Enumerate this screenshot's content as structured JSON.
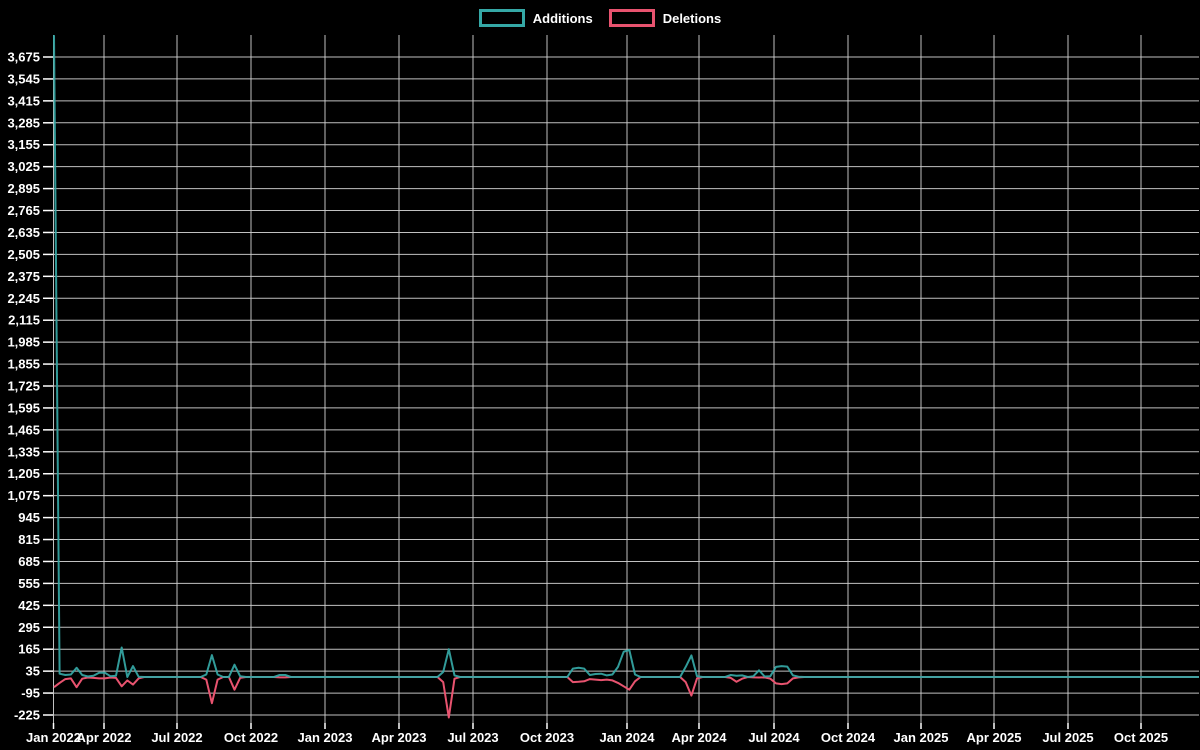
{
  "page": {
    "background": "#000000",
    "text_color": "#ffffff",
    "grid_color": "#cccccc"
  },
  "legend": {
    "items": [
      {
        "label": "Additions",
        "color": "#35a8a6"
      },
      {
        "label": "Deletions",
        "color": "#e8536f"
      }
    ]
  },
  "chart_data": {
    "type": "line",
    "title": "",
    "description": "Weekly code additions (teal) and deletions (pink) over time; huge additions spike at the first week, small activity bursts afterwards, flat near zero elsewhere.",
    "grid": "on",
    "legend_position": "top-center",
    "x_axis": {
      "tick_labels": [
        "Jan 2022",
        "Apr 2022",
        "Jul 2022",
        "Oct 2022",
        "Jan 2023",
        "Apr 2023",
        "Jul 2023",
        "Oct 2023",
        "Jan 2024",
        "Apr 2024",
        "Jul 2024",
        "Oct 2024",
        "Jan 2025",
        "Apr 2025",
        "Jul 2025",
        "Oct 2025"
      ],
      "points_per_week": 1,
      "weeks_total": 204
    },
    "y_axis": {
      "tick_labels": [
        "3,675",
        "3,545",
        "3,415",
        "3,285",
        "3,155",
        "3,025",
        "2,895",
        "2,765",
        "2,635",
        "2,505",
        "2,375",
        "2,245",
        "2,115",
        "1,985",
        "1,855",
        "1,725",
        "1,595",
        "1,465",
        "1,335",
        "1,205",
        "1,075",
        "945",
        "815",
        "685",
        "555",
        "425",
        "295",
        "165",
        "35",
        "-95",
        "-225"
      ],
      "tick_values_top_to_bottom_start": 3675,
      "tick_step": -130,
      "plot_max": 3805,
      "plot_min": -260
    },
    "series": [
      {
        "name": "Additions",
        "color": "#35a8a6",
        "default_value": 0,
        "points_nonzero": [
          [
            0,
            3805
          ],
          [
            1,
            20
          ],
          [
            2,
            12
          ],
          [
            3,
            15
          ],
          [
            4,
            55
          ],
          [
            5,
            12
          ],
          [
            6,
            3
          ],
          [
            7,
            8
          ],
          [
            8,
            26
          ],
          [
            9,
            26
          ],
          [
            10,
            5
          ],
          [
            11,
            8
          ],
          [
            12,
            175
          ],
          [
            14,
            65
          ],
          [
            15,
            2
          ],
          [
            27,
            15
          ],
          [
            28,
            130
          ],
          [
            29,
            15
          ],
          [
            32,
            73
          ],
          [
            33,
            5
          ],
          [
            40,
            12
          ],
          [
            41,
            12
          ],
          [
            69,
            30
          ],
          [
            70,
            165
          ],
          [
            71,
            10
          ],
          [
            92,
            50
          ],
          [
            93,
            55
          ],
          [
            94,
            50
          ],
          [
            95,
            12
          ],
          [
            96,
            18
          ],
          [
            97,
            20
          ],
          [
            98,
            10
          ],
          [
            99,
            15
          ],
          [
            100,
            60
          ],
          [
            101,
            150
          ],
          [
            102,
            160
          ],
          [
            103,
            15
          ],
          [
            112,
            60
          ],
          [
            113,
            128
          ],
          [
            114,
            5
          ],
          [
            120,
            12
          ],
          [
            121,
            8
          ],
          [
            122,
            10
          ],
          [
            124,
            5
          ],
          [
            125,
            40
          ],
          [
            126,
            3
          ],
          [
            127,
            5
          ],
          [
            128,
            60
          ],
          [
            129,
            65
          ],
          [
            130,
            62
          ],
          [
            131,
            10
          ],
          [
            132,
            2
          ]
        ]
      },
      {
        "name": "Deletions",
        "color": "#e8536f",
        "default_value": 0,
        "points_nonzero": [
          [
            0,
            -60
          ],
          [
            1,
            -35
          ],
          [
            2,
            -12
          ],
          [
            3,
            -8
          ],
          [
            4,
            -60
          ],
          [
            5,
            -10
          ],
          [
            6,
            -3
          ],
          [
            7,
            -5
          ],
          [
            8,
            -8
          ],
          [
            9,
            -8
          ],
          [
            10,
            -3
          ],
          [
            11,
            -5
          ],
          [
            12,
            -55
          ],
          [
            13,
            -20
          ],
          [
            14,
            -45
          ],
          [
            15,
            -8
          ],
          [
            27,
            -15
          ],
          [
            28,
            -155
          ],
          [
            29,
            -15
          ],
          [
            32,
            -75
          ],
          [
            33,
            -5
          ],
          [
            40,
            -2
          ],
          [
            41,
            -2
          ],
          [
            69,
            -30
          ],
          [
            70,
            -240
          ],
          [
            71,
            -10
          ],
          [
            92,
            -30
          ],
          [
            93,
            -28
          ],
          [
            94,
            -25
          ],
          [
            95,
            -12
          ],
          [
            96,
            -15
          ],
          [
            97,
            -18
          ],
          [
            98,
            -15
          ],
          [
            99,
            -20
          ],
          [
            100,
            -35
          ],
          [
            101,
            -55
          ],
          [
            102,
            -75
          ],
          [
            103,
            -25
          ],
          [
            112,
            -30
          ],
          [
            113,
            -110
          ],
          [
            114,
            -8
          ],
          [
            120,
            -5
          ],
          [
            121,
            -28
          ],
          [
            122,
            -10
          ],
          [
            124,
            -2
          ],
          [
            125,
            -3
          ],
          [
            126,
            -2
          ],
          [
            127,
            -10
          ],
          [
            128,
            -38
          ],
          [
            129,
            -42
          ],
          [
            130,
            -38
          ],
          [
            131,
            -8
          ],
          [
            132,
            -2
          ]
        ]
      }
    ]
  }
}
